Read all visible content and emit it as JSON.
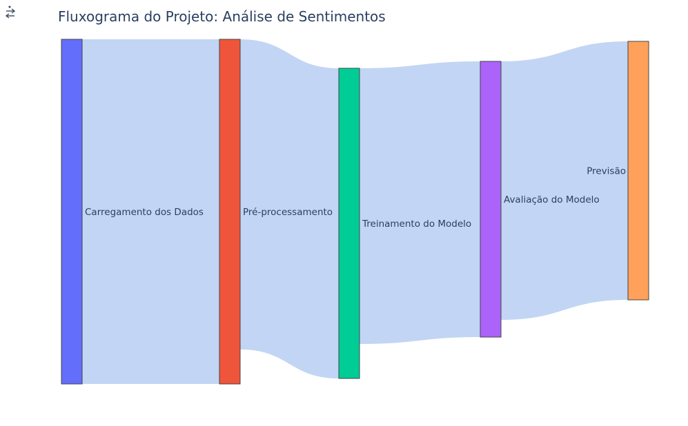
{
  "chart_data": {
    "type": "sankey",
    "title": "Fluxograma do Projeto: Análise de Sentimentos",
    "nodes": [
      {
        "label": "Carregamento dos Dados",
        "color": "#636efa"
      },
      {
        "label": "Pré-processamento",
        "color": "#ef553b"
      },
      {
        "label": "Treinamento do Modelo",
        "color": "#00cc96"
      },
      {
        "label": "Avaliação do Modelo",
        "color": "#ab63fa"
      },
      {
        "label": "Previsão",
        "color": "#ffa15a"
      }
    ],
    "links": [
      {
        "source": 0,
        "target": 1,
        "value": 100
      },
      {
        "source": 1,
        "target": 2,
        "value": 90
      },
      {
        "source": 2,
        "target": 3,
        "value": 80
      },
      {
        "source": 3,
        "target": 4,
        "value": 75
      }
    ],
    "link_color": "#c2d5f4"
  },
  "toolbar": {
    "icon": "toggle-icon"
  }
}
